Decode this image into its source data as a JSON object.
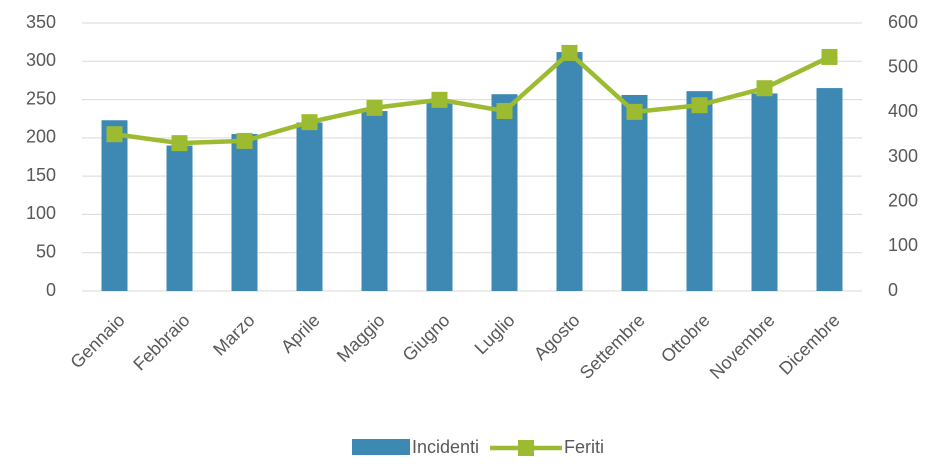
{
  "chart_data": {
    "type": "bar_line",
    "categories": [
      "Gennaio",
      "Febbraio",
      "Marzo",
      "Aprile",
      "Maggio",
      "Giugno",
      "Luglio",
      "Agosto",
      "Settembre",
      "Ottobre",
      "Novembre",
      "Dicembre"
    ],
    "series": [
      {
        "name": "Incidenti",
        "color": "#3e88b4",
        "type": "bar",
        "axis": "y",
        "values": [
          223,
          190,
          205,
          220,
          235,
          250,
          257,
          312,
          256,
          261,
          258,
          265
        ]
      },
      {
        "name": "Feriti",
        "color": "#9cbb31",
        "type": "line",
        "axis": "y2",
        "values": [
          351,
          331,
          336,
          378,
          410,
          428,
          403,
          533,
          401,
          416,
          454,
          524
        ]
      }
    ],
    "ylim": [
      0,
      350
    ],
    "yticks": [
      0,
      50,
      100,
      150,
      200,
      250,
      300,
      350
    ],
    "y2lim": [
      0,
      600
    ],
    "y2ticks": [
      0,
      100,
      200,
      300,
      400,
      500,
      600
    ],
    "grid": true,
    "legend": "bottom"
  }
}
